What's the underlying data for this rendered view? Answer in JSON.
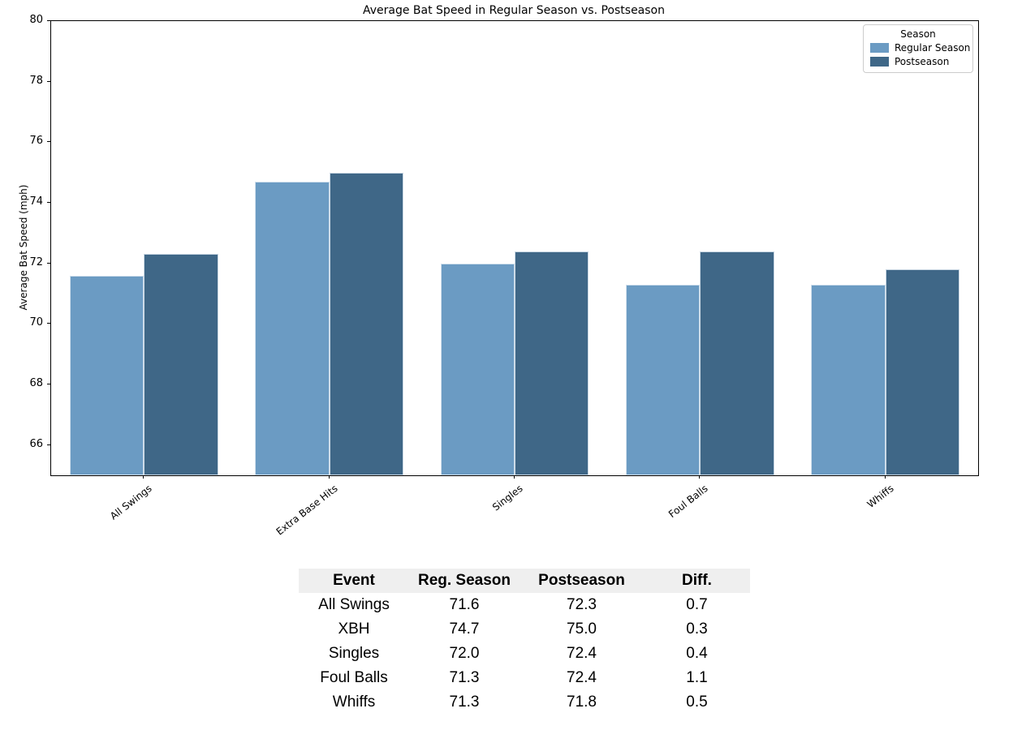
{
  "figure": {
    "title": "Average Bat Speed in Regular Season vs. Postseason"
  },
  "chart_data": {
    "type": "bar",
    "title": "Average Bat Speed in Regular Season vs. Postseason",
    "xlabel": "",
    "ylabel": "Average Bat Speed (mph)",
    "ylim": [
      65,
      80
    ],
    "yticks": [
      66,
      68,
      70,
      72,
      74,
      76,
      78,
      80
    ],
    "grid": false,
    "categories": [
      "All Swings",
      "Extra Base Hits",
      "Singles",
      "Foul Balls",
      "Whiffs"
    ],
    "series": [
      {
        "name": "Regular Season",
        "color": "#6b9bc3",
        "values": [
          71.6,
          74.7,
          72.0,
          71.3,
          71.3
        ]
      },
      {
        "name": "Postseason",
        "color": "#3f6787",
        "values": [
          72.3,
          75.0,
          72.4,
          72.4,
          71.8
        ]
      }
    ],
    "legend": {
      "title": "Season",
      "position": "upper right"
    }
  },
  "table": {
    "headers": [
      "Event",
      "Reg. Season",
      "Postseason",
      "Diff."
    ],
    "rows": [
      [
        "All Swings",
        "71.6",
        "72.3",
        "0.7"
      ],
      [
        "XBH",
        "74.7",
        "75.0",
        "0.3"
      ],
      [
        "Singles",
        "72.0",
        "72.4",
        "0.4"
      ],
      [
        "Foul Balls",
        "71.3",
        "72.4",
        "1.1"
      ],
      [
        "Whiffs",
        "71.3",
        "71.8",
        "0.5"
      ]
    ],
    "header_bg": "#efefef"
  },
  "colors": {
    "regular_season": "#6b9bc3",
    "postseason": "#3f6787",
    "spine": "#000000",
    "legend_border": "#cccccc",
    "table_header_bg": "#efefef"
  }
}
